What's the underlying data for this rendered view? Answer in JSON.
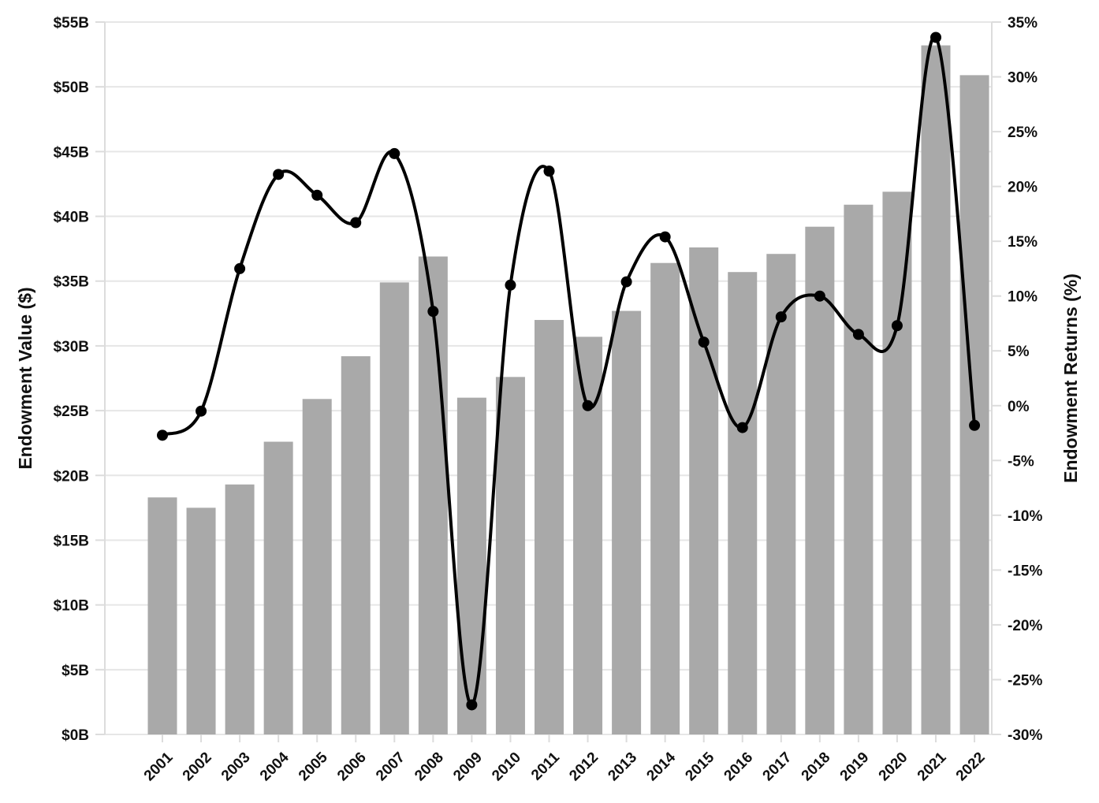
{
  "chart_data": {
    "type": "bar",
    "title": "",
    "xlabel": "",
    "ylabel": "Endowment Value ($)",
    "y2label": "Endowment Returns (%)",
    "categories": [
      "2001",
      "2002",
      "2003",
      "2004",
      "2005",
      "2006",
      "2007",
      "2008",
      "2009",
      "2010",
      "2011",
      "2012",
      "2013",
      "2014",
      "2015",
      "2016",
      "2017",
      "2018",
      "2019",
      "2020",
      "2021",
      "2022"
    ],
    "series": [
      {
        "type": "bar",
        "axis": "left",
        "unit": "$B",
        "values": [
          18.3,
          17.5,
          19.3,
          22.6,
          25.9,
          29.2,
          34.9,
          36.9,
          26.0,
          27.6,
          32.0,
          30.7,
          32.7,
          36.4,
          37.6,
          35.7,
          37.1,
          39.2,
          40.9,
          41.9,
          53.2,
          50.9
        ],
        "color": "#a9a9a9"
      },
      {
        "type": "line",
        "axis": "right",
        "unit": "%",
        "values": [
          -2.7,
          -0.5,
          12.5,
          21.1,
          19.2,
          16.7,
          23.0,
          8.6,
          -27.3,
          11.0,
          21.4,
          0.0,
          11.3,
          15.4,
          5.8,
          -2.0,
          8.1,
          10.0,
          6.5,
          7.3,
          33.6,
          -1.8
        ],
        "color": "#000000"
      }
    ],
    "y_ticks": [
      "$0B",
      "$5B",
      "$10B",
      "$15B",
      "$20B",
      "$25B",
      "$30B",
      "$35B",
      "$40B",
      "$45B",
      "$50B",
      "$55B"
    ],
    "y2_ticks": [
      "-30%",
      "-25%",
      "-20%",
      "-15%",
      "-10%",
      "-5%",
      "0%",
      "5%",
      "10%",
      "15%",
      "20%",
      "25%",
      "30%",
      "35%"
    ],
    "ylim": [
      0,
      55
    ],
    "y2lim": [
      -30,
      35
    ],
    "grid": true,
    "legend": "none"
  }
}
